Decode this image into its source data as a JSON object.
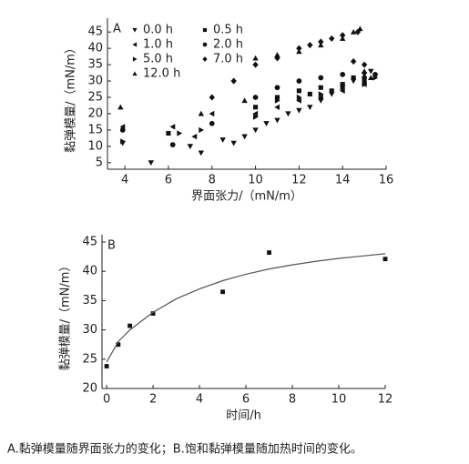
{
  "chart_data": [
    {
      "type": "scatter",
      "annotation": "A",
      "x_label": "界面张力/（mN/m）",
      "y_label": "黏弹模量/（mN/m）",
      "xlim": [
        3.2,
        16
      ],
      "xticks": [
        4,
        6,
        8,
        10,
        12,
        14,
        16
      ],
      "ylim": [
        3,
        47
      ],
      "yticks": [
        5,
        10,
        15,
        20,
        25,
        30,
        35,
        40,
        45
      ],
      "legend": "top-left",
      "series": [
        {
          "name": "0.0 h",
          "marker": "triangle-down",
          "color": "#111111",
          "x": [
            3.9,
            5.2,
            7,
            7.5,
            8.5,
            9,
            9.5,
            10,
            10.5,
            11,
            11.5,
            12,
            12.5,
            13,
            13.5,
            14,
            14.5,
            15,
            15.3
          ],
          "values": [
            11,
            5,
            10,
            8,
            12,
            11,
            13,
            15,
            17,
            18,
            20,
            21,
            22,
            24,
            26,
            28,
            30,
            32,
            33
          ]
        },
        {
          "name": "0.5 h",
          "marker": "square",
          "color": "#111111",
          "x": [
            6,
            10,
            11,
            12,
            12.5,
            13,
            13.5,
            14,
            14.5,
            15
          ],
          "values": [
            14,
            22,
            25,
            27,
            26,
            28,
            27,
            29,
            31,
            30
          ]
        },
        {
          "name": "1.0 h",
          "marker": "triangle-left",
          "color": "#111111",
          "x": [
            3.9,
            6.2,
            7.2,
            8,
            10,
            11,
            12,
            13,
            14,
            15
          ],
          "values": [
            16,
            16,
            13,
            20,
            20,
            22,
            24,
            25,
            27,
            29
          ]
        },
        {
          "name": "2.0 h",
          "marker": "circle",
          "color": "#111111",
          "x": [
            3.9,
            6.2,
            8,
            10,
            11,
            12,
            13,
            14,
            15,
            15.5
          ],
          "values": [
            15,
            10.5,
            17,
            25,
            28,
            30,
            31,
            32,
            31,
            32
          ]
        },
        {
          "name": "5.0 h",
          "marker": "triangle-right",
          "color": "#111111",
          "x": [
            3.9,
            6.5,
            7.5,
            10,
            11,
            12,
            13,
            14,
            15,
            15.5
          ],
          "values": [
            11.5,
            14,
            15,
            19,
            24,
            25,
            26,
            28,
            29,
            31
          ]
        },
        {
          "name": "7.0 h",
          "marker": "diamond",
          "color": "#111111",
          "x": [
            8,
            9,
            10,
            11,
            12,
            12.5,
            13,
            13.5,
            14,
            14.7,
            14.5,
            15
          ],
          "values": [
            25,
            30,
            35,
            37,
            40,
            41,
            42,
            43,
            44,
            45,
            36,
            35
          ]
        },
        {
          "name": "12.0 h",
          "marker": "triangle-up",
          "color": "#111111",
          "x": [
            3.8,
            7.5,
            9.5,
            10,
            11,
            12,
            13,
            14,
            14.5,
            14.8,
            15,
            15.3
          ],
          "values": [
            22,
            20,
            24,
            37,
            38,
            39,
            41,
            43,
            45,
            46,
            33,
            31
          ]
        }
      ]
    },
    {
      "type": "scatter",
      "annotation": "B",
      "x_label": "时间/h",
      "y_label": "黏弹模量/（mN/m）",
      "xlim": [
        -0.2,
        12
      ],
      "xticks": [
        0,
        2,
        4,
        6,
        8,
        10,
        12
      ],
      "ylim": [
        20,
        45
      ],
      "yticks": [
        20,
        25,
        30,
        35,
        40,
        45
      ],
      "series": [
        {
          "marker": "square",
          "color": "#111111",
          "x": [
            0,
            0.5,
            1,
            2,
            5,
            7,
            12
          ],
          "values": [
            23.8,
            27.5,
            30.7,
            32.8,
            36.5,
            43.2,
            42.1
          ]
        },
        {
          "style": "line",
          "color": "#555555",
          "x": [
            0,
            0.5,
            1,
            2,
            3,
            4,
            5,
            6,
            7,
            8,
            9,
            10,
            11,
            12
          ],
          "values": [
            24.5,
            28,
            30,
            33,
            35.3,
            37,
            38.4,
            39.5,
            40.4,
            41.1,
            41.7,
            42.2,
            42.6,
            43
          ]
        }
      ]
    }
  ],
  "caption": "A.黏弹模量随界面张力的变化；B.饱和黏弹模量随加热时间的变化。"
}
